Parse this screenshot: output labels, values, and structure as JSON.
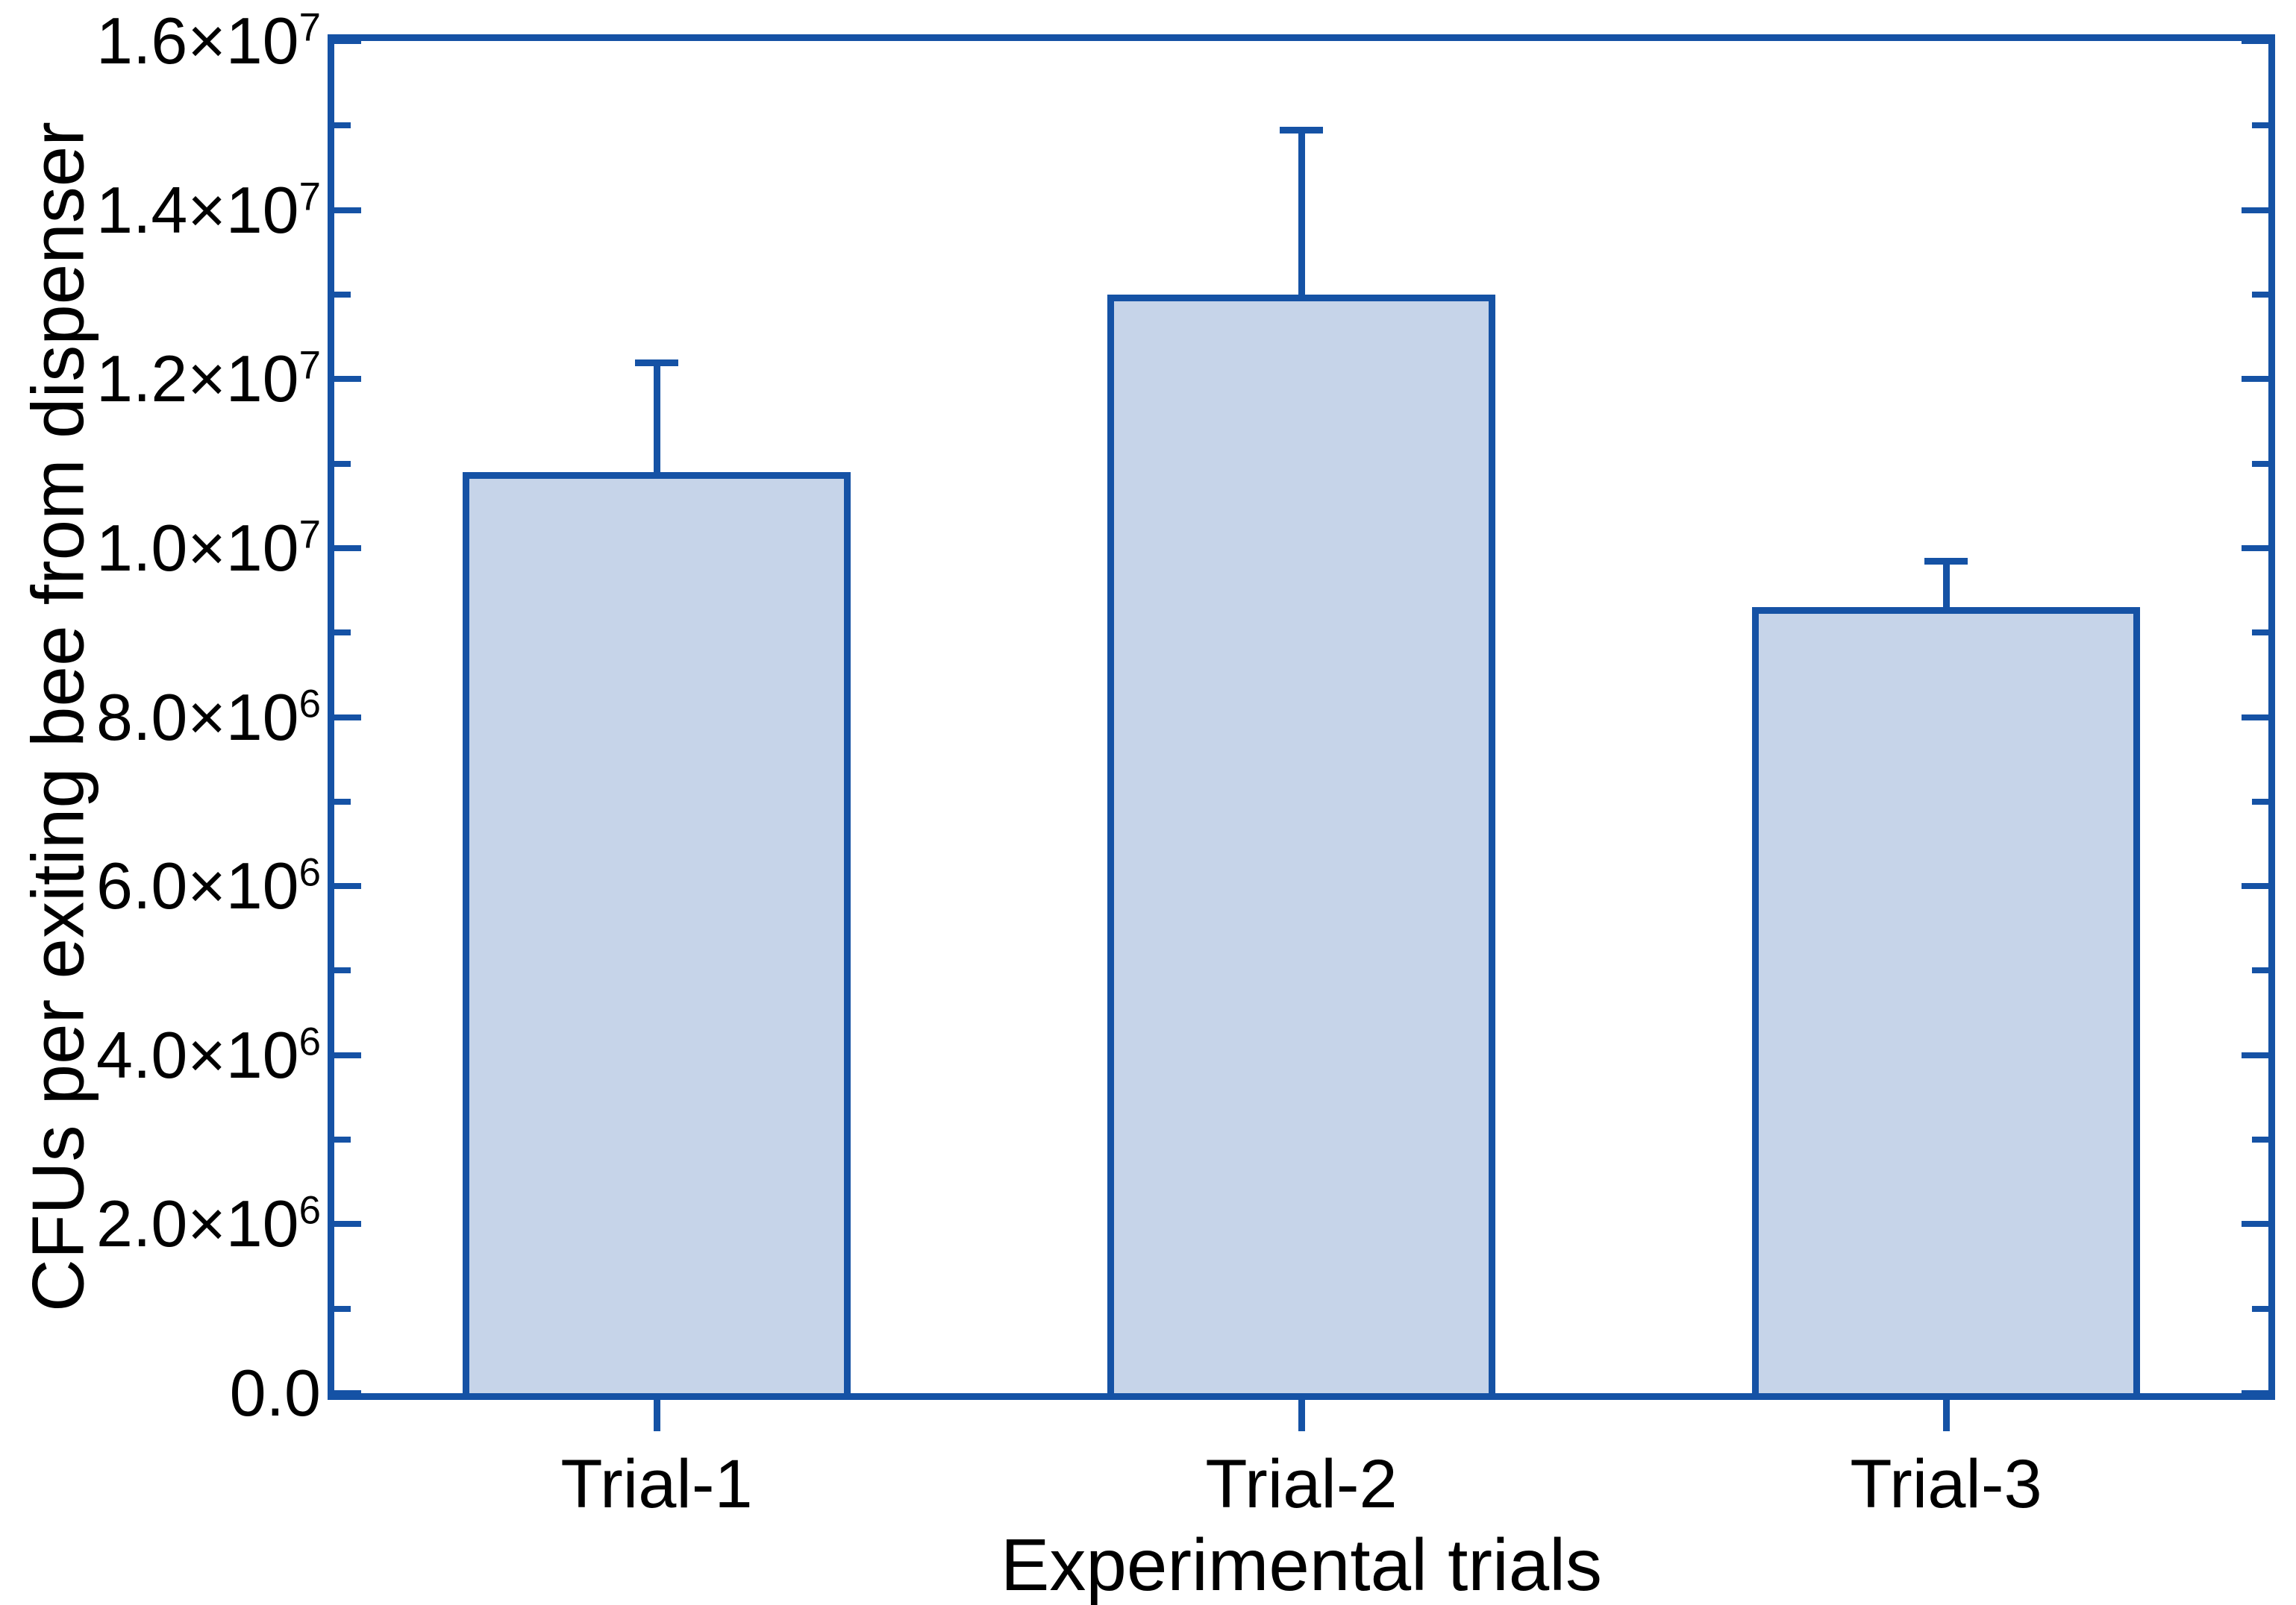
{
  "chart_data": {
    "type": "bar",
    "title": "",
    "categories": [
      "Trial-1",
      "Trial-2",
      "Trial-3"
    ],
    "values": [
      10900000,
      13000000,
      9300000
    ],
    "errors_upper": [
      1300000,
      1950000,
      550000
    ],
    "xlabel": "Experimental trials",
    "ylabel": "CFUs per exiting bee from dispenser",
    "ylim": [
      0,
      16000000
    ],
    "y_major_tick_step": 2000000,
    "y_minor_tick_step": 1000000,
    "y_tick_labels": [
      "0.0",
      "2.0×10⁶",
      "4.0×10⁶",
      "6.0×10⁶",
      "8.0×10⁶",
      "1.0×10⁷",
      "1.2×10⁷",
      "1.4×10⁷",
      "1.6×10⁷"
    ],
    "grid": false,
    "legend": null,
    "bar_fill_color": "#c6d4e9",
    "bar_border_color": "#1552a5",
    "axis_color": "#1552a5",
    "error_bar_color": "#1552a5",
    "text_color": "#000000"
  }
}
